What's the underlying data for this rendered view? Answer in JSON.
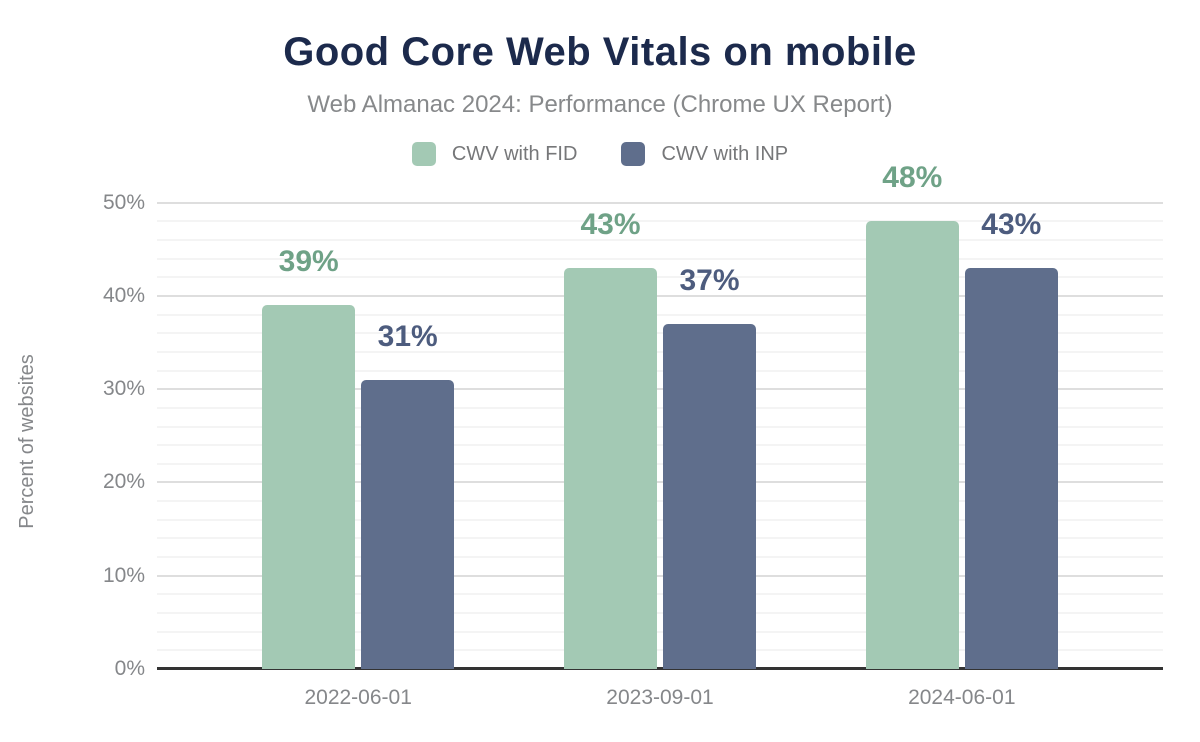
{
  "header": {
    "title": "Good Core Web Vitals on mobile",
    "subtitle": "Web Almanac 2024: Performance (Chrome UX Report)"
  },
  "chart_data": {
    "type": "bar",
    "title": "Good Core Web Vitals on mobile",
    "subtitle": "Web Almanac 2024: Performance (Chrome UX Report)",
    "categories": [
      "2022-06-01",
      "2023-09-01",
      "2024-06-01"
    ],
    "series": [
      {
        "name": "CWV with FID",
        "values": [
          39,
          43,
          48
        ],
        "labels": [
          "39%",
          "43%",
          "48%"
        ],
        "bar_color": "#a3c9b4",
        "label_color": "#6fa287"
      },
      {
        "name": "CWV with INP",
        "values": [
          31,
          37,
          43
        ],
        "labels": [
          "31%",
          "37%",
          "43%"
        ],
        "bar_color": "#5f6e8c",
        "label_color": "#4d5c7e"
      }
    ],
    "xlabel": "",
    "ylabel": "Percent of websites",
    "y_ticks": [
      "0%",
      "10%",
      "20%",
      "30%",
      "40%",
      "50%"
    ],
    "y_tick_values": [
      0,
      10,
      20,
      30,
      40,
      50
    ],
    "ylim": [
      0,
      52
    ],
    "grid": "horizontal, major every 10%, minor every 2%",
    "legend_position": "top-center"
  },
  "colors": {
    "title": "#1c2a4c",
    "subtitle": "#87898b",
    "axis_text": "#85878a",
    "legend_text": "#767779",
    "baseline": "#333333",
    "grid_major": "#dedede",
    "grid_minor": "#f4f4f4",
    "background": "#ffffff"
  }
}
